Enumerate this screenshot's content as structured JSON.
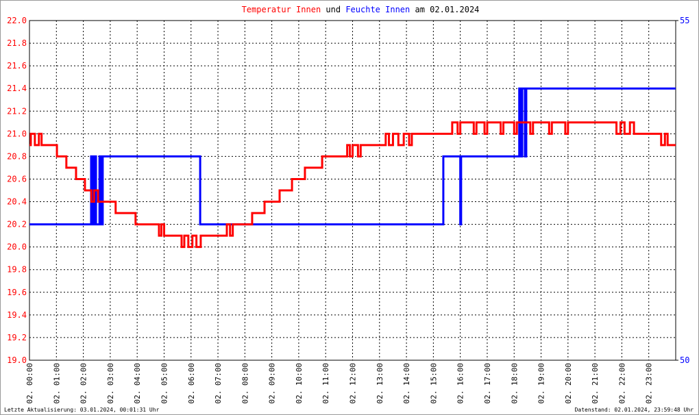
{
  "chart_data": {
    "type": "line",
    "step": true,
    "title_joiner": "und",
    "title_suffix": "am 02.01.2024",
    "footer_left": "Letzte Aktualisierung: 03.01.2024, 00:01:31 Uhr",
    "footer_right": "Datenstand: 02.01.2024, 23:59:48 Uhr",
    "xlim": [
      0,
      24
    ],
    "xticks": [
      {
        "value": 0,
        "label": "02. 00:00"
      },
      {
        "value": 1,
        "label": "02. 01:00"
      },
      {
        "value": 2,
        "label": "02. 02:00"
      },
      {
        "value": 3,
        "label": "02. 03:00"
      },
      {
        "value": 4,
        "label": "02. 04:00"
      },
      {
        "value": 5,
        "label": "02. 05:00"
      },
      {
        "value": 6,
        "label": "02. 06:00"
      },
      {
        "value": 7,
        "label": "02. 07:00"
      },
      {
        "value": 8,
        "label": "02. 08:00"
      },
      {
        "value": 9,
        "label": "02. 09:00"
      },
      {
        "value": 10,
        "label": "02. 10:00"
      },
      {
        "value": 11,
        "label": "02. 11:00"
      },
      {
        "value": 12,
        "label": "02. 12:00"
      },
      {
        "value": 13,
        "label": "02. 13:00"
      },
      {
        "value": 14,
        "label": "02. 14:00"
      },
      {
        "value": 15,
        "label": "02. 15:00"
      },
      {
        "value": 16,
        "label": "02. 16:00"
      },
      {
        "value": 17,
        "label": "02. 17:00"
      },
      {
        "value": 18,
        "label": "02. 18:00"
      },
      {
        "value": 19,
        "label": "02. 19:00"
      },
      {
        "value": 20,
        "label": "02. 20:00"
      },
      {
        "value": 21,
        "label": "02. 21:00"
      },
      {
        "value": 22,
        "label": "02. 22:00"
      },
      {
        "value": 23,
        "label": "02. 23:00"
      }
    ],
    "ylim": [
      19,
      22
    ],
    "yticks": [
      {
        "value": 19,
        "label": "19.0"
      },
      19.2,
      19.4,
      19.6,
      19.8,
      {
        "value": 20,
        "label": "20.0"
      },
      20.2,
      20.4,
      20.6,
      20.8,
      {
        "value": 21,
        "label": "21.0"
      },
      21.2,
      21.4,
      21.6,
      21.8,
      {
        "value": 22,
        "label": "22.0"
      }
    ],
    "y2lim": [
      50,
      55
    ],
    "y2ticks": [
      50,
      55
    ],
    "grid": true,
    "series": [
      {
        "name": "Temperatur Innen",
        "color": "#ff0000",
        "x": [
          0,
          0.05,
          0.2,
          0.35,
          0.45,
          1.02,
          1.37,
          1.73,
          2.06,
          2.3,
          2.4,
          2.55,
          3.2,
          3.94,
          4.81,
          4.9,
          5.0,
          5.65,
          5.75,
          5.9,
          6.05,
          6.2,
          6.36,
          7.33,
          7.45,
          7.55,
          8.27,
          8.73,
          9.29,
          9.75,
          10.23,
          10.87,
          11.8,
          11.9,
          12.0,
          12.2,
          12.3,
          13.23,
          13.35,
          13.5,
          13.7,
          13.9,
          14.1,
          14.2,
          15.7,
          15.9,
          16.0,
          16.5,
          16.6,
          16.9,
          17.0,
          17.5,
          17.6,
          18.0,
          18.1,
          18.6,
          18.7,
          19.3,
          19.4,
          19.9,
          20.0,
          21.8,
          21.95,
          22.1,
          22.3,
          22.45,
          23.46,
          23.6,
          23.7,
          24
        ],
        "values": [
          20.9,
          21.0,
          20.9,
          21.0,
          20.9,
          20.8,
          20.7,
          20.6,
          20.5,
          20.4,
          20.5,
          20.4,
          20.3,
          20.2,
          20.1,
          20.2,
          20.1,
          20.0,
          20.1,
          20.0,
          20.1,
          20.0,
          20.1,
          20.2,
          20.1,
          20.2,
          20.3,
          20.4,
          20.5,
          20.6,
          20.7,
          20.8,
          20.9,
          20.8,
          20.9,
          20.8,
          20.9,
          21.0,
          20.9,
          21.0,
          20.9,
          21.0,
          20.9,
          21.0,
          21.1,
          21.0,
          21.1,
          21.0,
          21.1,
          21.0,
          21.1,
          21.0,
          21.1,
          21.0,
          21.1,
          21.0,
          21.1,
          21.0,
          21.1,
          21.0,
          21.1,
          21.0,
          21.1,
          21.0,
          21.1,
          21.0,
          20.9,
          21.0,
          20.9,
          20.9
        ]
      },
      {
        "name": "Feuchte Innen",
        "color": "#0000ff",
        "axis": "y2",
        "x": [
          0,
          2.29,
          2.35,
          2.4,
          2.47,
          2.6,
          2.65,
          2.72,
          6.34,
          15.37,
          16.0,
          16.03,
          18.19,
          18.25,
          18.3,
          18.4,
          18.45,
          24
        ],
        "values": [
          52,
          53,
          52,
          53,
          52,
          53,
          52,
          53,
          52,
          53,
          52,
          53,
          54,
          53,
          54,
          53,
          54,
          54
        ]
      }
    ]
  }
}
